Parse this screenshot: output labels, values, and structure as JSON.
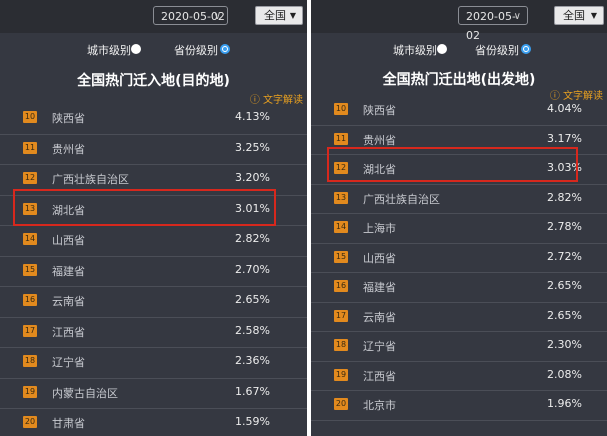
{
  "left": {
    "date": "2020-05-02",
    "scope_label": "全国",
    "level_city": "城市级别",
    "level_province": "省份级别",
    "title": "全国热门迁入地(目的地)",
    "explain": "文字解读",
    "rows": [
      {
        "rank": "10",
        "name": "陕西省",
        "value": "4.13%"
      },
      {
        "rank": "11",
        "name": "贵州省",
        "value": "3.25%"
      },
      {
        "rank": "12",
        "name": "广西壮族自治区",
        "value": "3.20%"
      },
      {
        "rank": "13",
        "name": "湖北省",
        "value": "3.01%"
      },
      {
        "rank": "14",
        "name": "山西省",
        "value": "2.82%"
      },
      {
        "rank": "15",
        "name": "福建省",
        "value": "2.70%"
      },
      {
        "rank": "16",
        "name": "云南省",
        "value": "2.65%"
      },
      {
        "rank": "17",
        "name": "江西省",
        "value": "2.58%"
      },
      {
        "rank": "18",
        "name": "辽宁省",
        "value": "2.36%"
      },
      {
        "rank": "19",
        "name": "内蒙古自治区",
        "value": "1.67%"
      },
      {
        "rank": "20",
        "name": "甘肃省",
        "value": "1.59%"
      }
    ]
  },
  "right": {
    "date": "2020-05-02",
    "scope_label": "全国",
    "level_city": "城市级别",
    "level_province": "省份级别",
    "title": "全国热门迁出地(出发地)",
    "explain": "文字解读",
    "rows": [
      {
        "rank": "10",
        "name": "陕西省",
        "value": "4.04%"
      },
      {
        "rank": "11",
        "name": "贵州省",
        "value": "3.17%"
      },
      {
        "rank": "12",
        "name": "湖北省",
        "value": "3.03%"
      },
      {
        "rank": "13",
        "name": "广西壮族自治区",
        "value": "2.82%"
      },
      {
        "rank": "14",
        "name": "上海市",
        "value": "2.78%"
      },
      {
        "rank": "15",
        "name": "山西省",
        "value": "2.72%"
      },
      {
        "rank": "16",
        "name": "福建省",
        "value": "2.65%"
      },
      {
        "rank": "17",
        "name": "云南省",
        "value": "2.65%"
      },
      {
        "rank": "18",
        "name": "辽宁省",
        "value": "2.30%"
      },
      {
        "rank": "19",
        "name": "江西省",
        "value": "2.08%"
      },
      {
        "rank": "20",
        "name": "北京市",
        "value": "1.96%"
      }
    ]
  },
  "colors": {
    "panel_bg": "#353841",
    "topbar_bg": "#2b2d33",
    "rank_badge": "#e28a1e",
    "highlight": "#d7281d",
    "radio_selected": "#3a9ff0"
  }
}
